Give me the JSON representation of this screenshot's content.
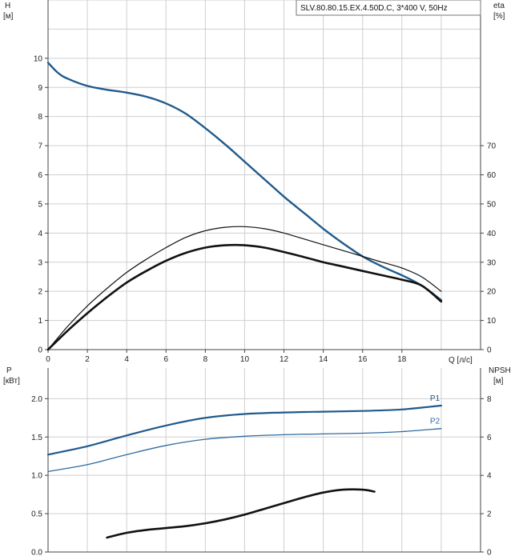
{
  "chart_data": [
    {
      "type": "line",
      "title": "SLV.80.80.15.EX.4.50D.C, 3*400 V, 50Hz",
      "xlabel": "Q [л/с]",
      "ylabel_name": "H",
      "ylabel_unit": "[м]",
      "y2label_name": "eta",
      "y2label_unit": "[%]",
      "xlim": [
        0,
        22
      ],
      "ylim": [
        0,
        12
      ],
      "y2lim": [
        0,
        120
      ],
      "xticks": [
        "0",
        "2",
        "4",
        "6",
        "8",
        "10",
        "12",
        "14",
        "16",
        "18"
      ],
      "yticks": [
        "0",
        "1",
        "2",
        "3",
        "4",
        "5",
        "6",
        "7",
        "8",
        "9",
        "10"
      ],
      "y2ticks": [
        "0",
        "10",
        "20",
        "30",
        "40",
        "50",
        "60",
        "70"
      ],
      "grid": true,
      "colors": {
        "H": "#1f5a8c",
        "eta": "#111111"
      },
      "series": [
        {
          "key": "H",
          "axis": "left",
          "x": [
            0,
            0.5,
            1,
            2,
            3,
            4,
            5,
            6,
            7,
            8,
            9,
            10,
            11,
            12,
            13,
            14,
            15,
            16,
            17,
            18,
            19,
            20
          ],
          "y": [
            9.85,
            9.5,
            9.3,
            9.05,
            8.92,
            8.82,
            8.68,
            8.45,
            8.1,
            7.6,
            7.05,
            6.45,
            5.85,
            5.25,
            4.7,
            4.15,
            3.65,
            3.2,
            2.85,
            2.55,
            2.2,
            1.7
          ]
        },
        {
          "key": "eta1",
          "axis": "right",
          "x": [
            0,
            1,
            2,
            3,
            4,
            5,
            6,
            7,
            8,
            9,
            10,
            11,
            12,
            13,
            14,
            15,
            16,
            17,
            18,
            19,
            20
          ],
          "y": [
            0,
            8,
            15,
            21,
            26.5,
            31,
            35,
            38.5,
            40.8,
            42,
            42.2,
            41.5,
            40,
            38,
            36,
            34,
            32,
            30,
            28,
            25,
            20
          ]
        },
        {
          "key": "eta2",
          "axis": "right",
          "x": [
            0,
            1,
            2,
            3,
            4,
            5,
            6,
            7,
            8,
            9,
            10,
            11,
            12,
            13,
            14,
            15,
            16,
            17,
            18,
            19,
            20
          ],
          "y": [
            0,
            6.5,
            12.5,
            18,
            23,
            27,
            30.5,
            33.2,
            35,
            35.8,
            35.8,
            35,
            33.5,
            31.8,
            30,
            28.5,
            27,
            25.5,
            24,
            22,
            16.5
          ]
        }
      ]
    },
    {
      "type": "line",
      "ylabel_name": "P",
      "ylabel_unit": "[кВт]",
      "y2label_name": "NPSH",
      "y2label_unit": "[м]",
      "xlim": [
        0,
        22
      ],
      "ylim": [
        0,
        2.4
      ],
      "y2lim": [
        0,
        9.6
      ],
      "yticks": [
        "0.0",
        "0.5",
        "1.0",
        "1.5",
        "2.0"
      ],
      "y2ticks": [
        "0",
        "2",
        "4",
        "6",
        "8"
      ],
      "grid": true,
      "colors": {
        "P1": "#1f5a8c",
        "P2": "#2f6aa0",
        "NPSH": "#111111"
      },
      "series": [
        {
          "key": "P1",
          "name": "P1",
          "axis": "left",
          "x": [
            0,
            2,
            4,
            6,
            8,
            10,
            12,
            14,
            16,
            18,
            20
          ],
          "y": [
            1.27,
            1.38,
            1.52,
            1.65,
            1.75,
            1.8,
            1.82,
            1.83,
            1.84,
            1.86,
            1.91
          ]
        },
        {
          "key": "P2",
          "name": "P2",
          "axis": "left",
          "x": [
            0,
            2,
            4,
            6,
            8,
            10,
            12,
            14,
            16,
            18,
            20
          ],
          "y": [
            1.05,
            1.14,
            1.27,
            1.39,
            1.47,
            1.51,
            1.53,
            1.54,
            1.55,
            1.57,
            1.61
          ]
        },
        {
          "key": "NPSH",
          "axis": "right",
          "x": [
            3,
            4,
            5,
            6,
            7,
            8,
            9,
            10,
            11,
            12,
            13,
            14,
            15,
            16,
            16.6
          ],
          "y": [
            0.75,
            1.0,
            1.15,
            1.25,
            1.35,
            1.5,
            1.7,
            1.95,
            2.25,
            2.55,
            2.85,
            3.1,
            3.25,
            3.25,
            3.15
          ]
        }
      ]
    }
  ]
}
